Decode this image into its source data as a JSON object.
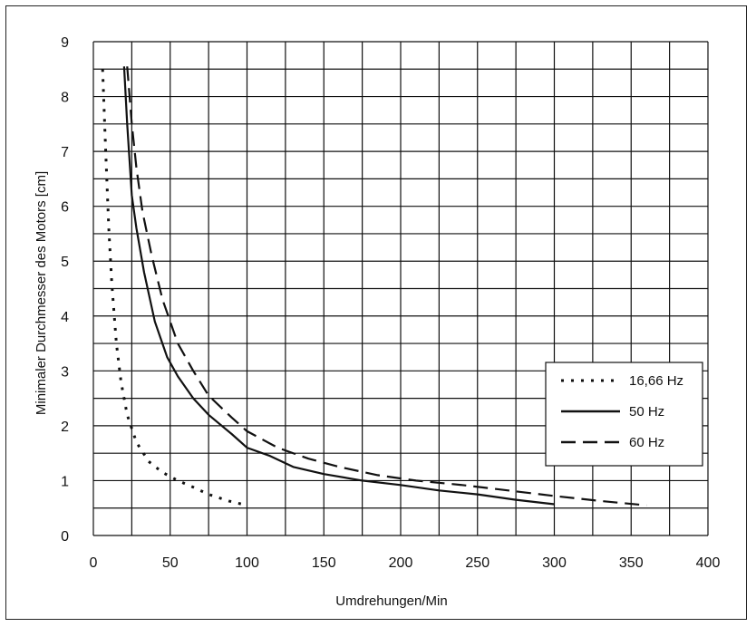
{
  "chart_data": {
    "type": "line",
    "xlabel": "Umdrehungen/Min",
    "ylabel": "Minimaler Durchmesser des Motors [cm]",
    "xlim": [
      0,
      400
    ],
    "ylim": [
      0,
      9
    ],
    "x_ticks": [
      0,
      50,
      100,
      150,
      200,
      250,
      300,
      350,
      400
    ],
    "x_tick_labels": [
      "0",
      "50",
      "100",
      "150",
      "200",
      "250",
      "300",
      "350",
      "400"
    ],
    "y_ticks": [
      0,
      1,
      2,
      3,
      4,
      5,
      6,
      7,
      8,
      9
    ],
    "y_tick_labels": [
      "0",
      "1",
      "2",
      "3",
      "4",
      "5",
      "6",
      "7",
      "8",
      "9"
    ],
    "grid": true,
    "grid_x_step": 25,
    "grid_y_step": 0.5,
    "legend_position": "right",
    "series": [
      {
        "name": "16,66 Hz",
        "style": "dotted",
        "color": "#111111",
        "points": [
          [
            6,
            8.5
          ],
          [
            8,
            7.0
          ],
          [
            10,
            5.6
          ],
          [
            12,
            4.6
          ],
          [
            15,
            3.5
          ],
          [
            18,
            2.8
          ],
          [
            22,
            2.2
          ],
          [
            28,
            1.7
          ],
          [
            36,
            1.35
          ],
          [
            45,
            1.15
          ],
          [
            55,
            1.0
          ],
          [
            65,
            0.88
          ],
          [
            75,
            0.75
          ],
          [
            88,
            0.63
          ],
          [
            100,
            0.55
          ]
        ]
      },
      {
        "name": "50 Hz",
        "style": "solid",
        "color": "#111111",
        "points": [
          [
            20,
            8.55
          ],
          [
            22,
            7.5
          ],
          [
            25,
            6.2
          ],
          [
            28,
            5.6
          ],
          [
            33,
            4.8
          ],
          [
            40,
            3.9
          ],
          [
            48,
            3.25
          ],
          [
            55,
            2.9
          ],
          [
            65,
            2.5
          ],
          [
            75,
            2.2
          ],
          [
            90,
            1.85
          ],
          [
            100,
            1.6
          ],
          [
            115,
            1.45
          ],
          [
            130,
            1.25
          ],
          [
            150,
            1.12
          ],
          [
            175,
            1.0
          ],
          [
            200,
            0.92
          ],
          [
            225,
            0.82
          ],
          [
            250,
            0.75
          ],
          [
            275,
            0.65
          ],
          [
            300,
            0.57
          ]
        ]
      },
      {
        "name": "60 Hz",
        "style": "dashed",
        "color": "#111111",
        "points": [
          [
            22,
            8.55
          ],
          [
            25,
            7.5
          ],
          [
            28,
            6.7
          ],
          [
            32,
            5.9
          ],
          [
            38,
            5.1
          ],
          [
            45,
            4.3
          ],
          [
            55,
            3.5
          ],
          [
            65,
            3.0
          ],
          [
            75,
            2.55
          ],
          [
            90,
            2.15
          ],
          [
            100,
            1.9
          ],
          [
            120,
            1.6
          ],
          [
            140,
            1.4
          ],
          [
            160,
            1.25
          ],
          [
            185,
            1.1
          ],
          [
            210,
            1.0
          ],
          [
            240,
            0.92
          ],
          [
            270,
            0.82
          ],
          [
            300,
            0.72
          ],
          [
            330,
            0.63
          ],
          [
            360,
            0.55
          ]
        ]
      }
    ]
  }
}
